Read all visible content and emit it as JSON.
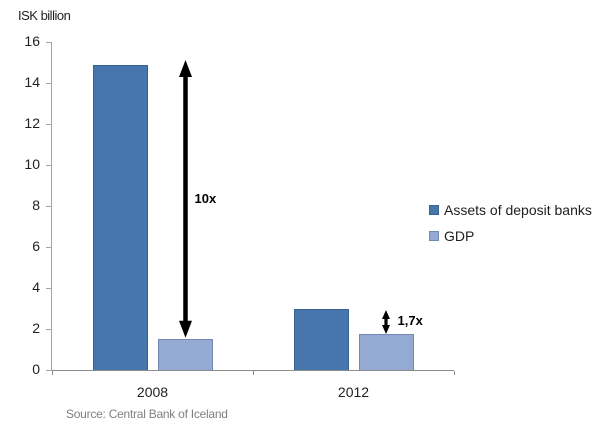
{
  "chart_data": {
    "type": "bar",
    "title": "ISK billion",
    "categories": [
      "2008",
      "2012"
    ],
    "series": [
      {
        "name": "Assets of deposit banks",
        "values": [
          14.9,
          3.0
        ],
        "color": "#4776AC",
        "border_color": "#3A6191"
      },
      {
        "name": "GDP",
        "values": [
          1.5,
          1.75
        ],
        "color": "#94AAD2",
        "border_color": "#7289B5"
      }
    ],
    "ylabel": "ISK billion",
    "ylim": [
      0,
      16
    ],
    "yticks": [
      0,
      2,
      4,
      6,
      8,
      10,
      12,
      14,
      16
    ],
    "grid": false,
    "legend_position": "right",
    "annotations": [
      {
        "label": "10x",
        "type": "double-arrow",
        "category": "2008",
        "over_series": "GDP",
        "from_value": 1.55,
        "to_value": 15.1
      },
      {
        "label": "1,7x",
        "type": "double-arrow",
        "category": "2012",
        "over_series": "GDP",
        "from_value": 1.78,
        "to_value": 2.95
      }
    ],
    "source_note": "Source: Central Bank of Iceland",
    "colors": {
      "axis_line": "#a6a6a6",
      "x_axis_line": "#8c8c8c",
      "text": "#1f1f1f",
      "annotation": "#000000",
      "source_text": "#808080"
    }
  }
}
